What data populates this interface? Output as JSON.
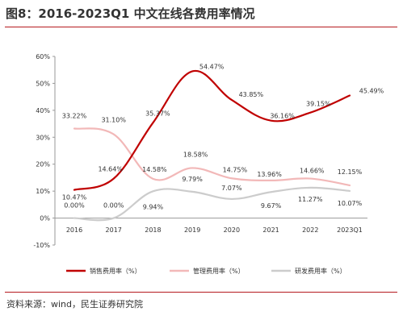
{
  "figure": {
    "title": "图8：2016-2023Q1 中文在线各费用率情况",
    "source": "资料来源：wind，民生证券研究院"
  },
  "chart_data": {
    "type": "line",
    "categories": [
      "2016",
      "2017",
      "2018",
      "2019",
      "2020",
      "2021",
      "2022",
      "2023Q1"
    ],
    "ylim": [
      -10,
      60
    ],
    "yticks": [
      "-10%",
      "0%",
      "10%",
      "20%",
      "30%",
      "40%",
      "50%",
      "60%"
    ],
    "ytick_values": [
      -10,
      0,
      10,
      20,
      30,
      40,
      50,
      60
    ],
    "legend_position": "bottom",
    "grid": false,
    "series": [
      {
        "name": "销售费用率（%）",
        "color": "#c00000",
        "values": [
          10.47,
          14.64,
          35.37,
          54.47,
          43.85,
          36.16,
          39.15,
          45.49
        ],
        "labels": [
          "10.47%",
          "14.64%",
          "35.37%",
          "54.47%",
          "43.85%",
          "36.16%",
          "39.15%",
          "45.49%"
        ]
      },
      {
        "name": "管理费用率（%）",
        "color": "#f2b8b8",
        "values": [
          33.22,
          31.1,
          14.58,
          18.58,
          14.75,
          13.96,
          14.66,
          12.15
        ],
        "labels": [
          "33.22%",
          "31.10%",
          "14.58%",
          "18.58%",
          "14.75%",
          "13.96%",
          "14.66%",
          "12.15%"
        ]
      },
      {
        "name": "研发费用率（%）",
        "color": "#cccccc",
        "values": [
          0.0,
          0.0,
          9.94,
          9.79,
          7.07,
          9.67,
          11.27,
          10.07
        ],
        "labels": [
          "0.00%",
          "0.00%",
          "9.94%",
          "9.79%",
          "7.07%",
          "9.67%",
          "11.27%",
          "10.07%"
        ]
      }
    ]
  }
}
